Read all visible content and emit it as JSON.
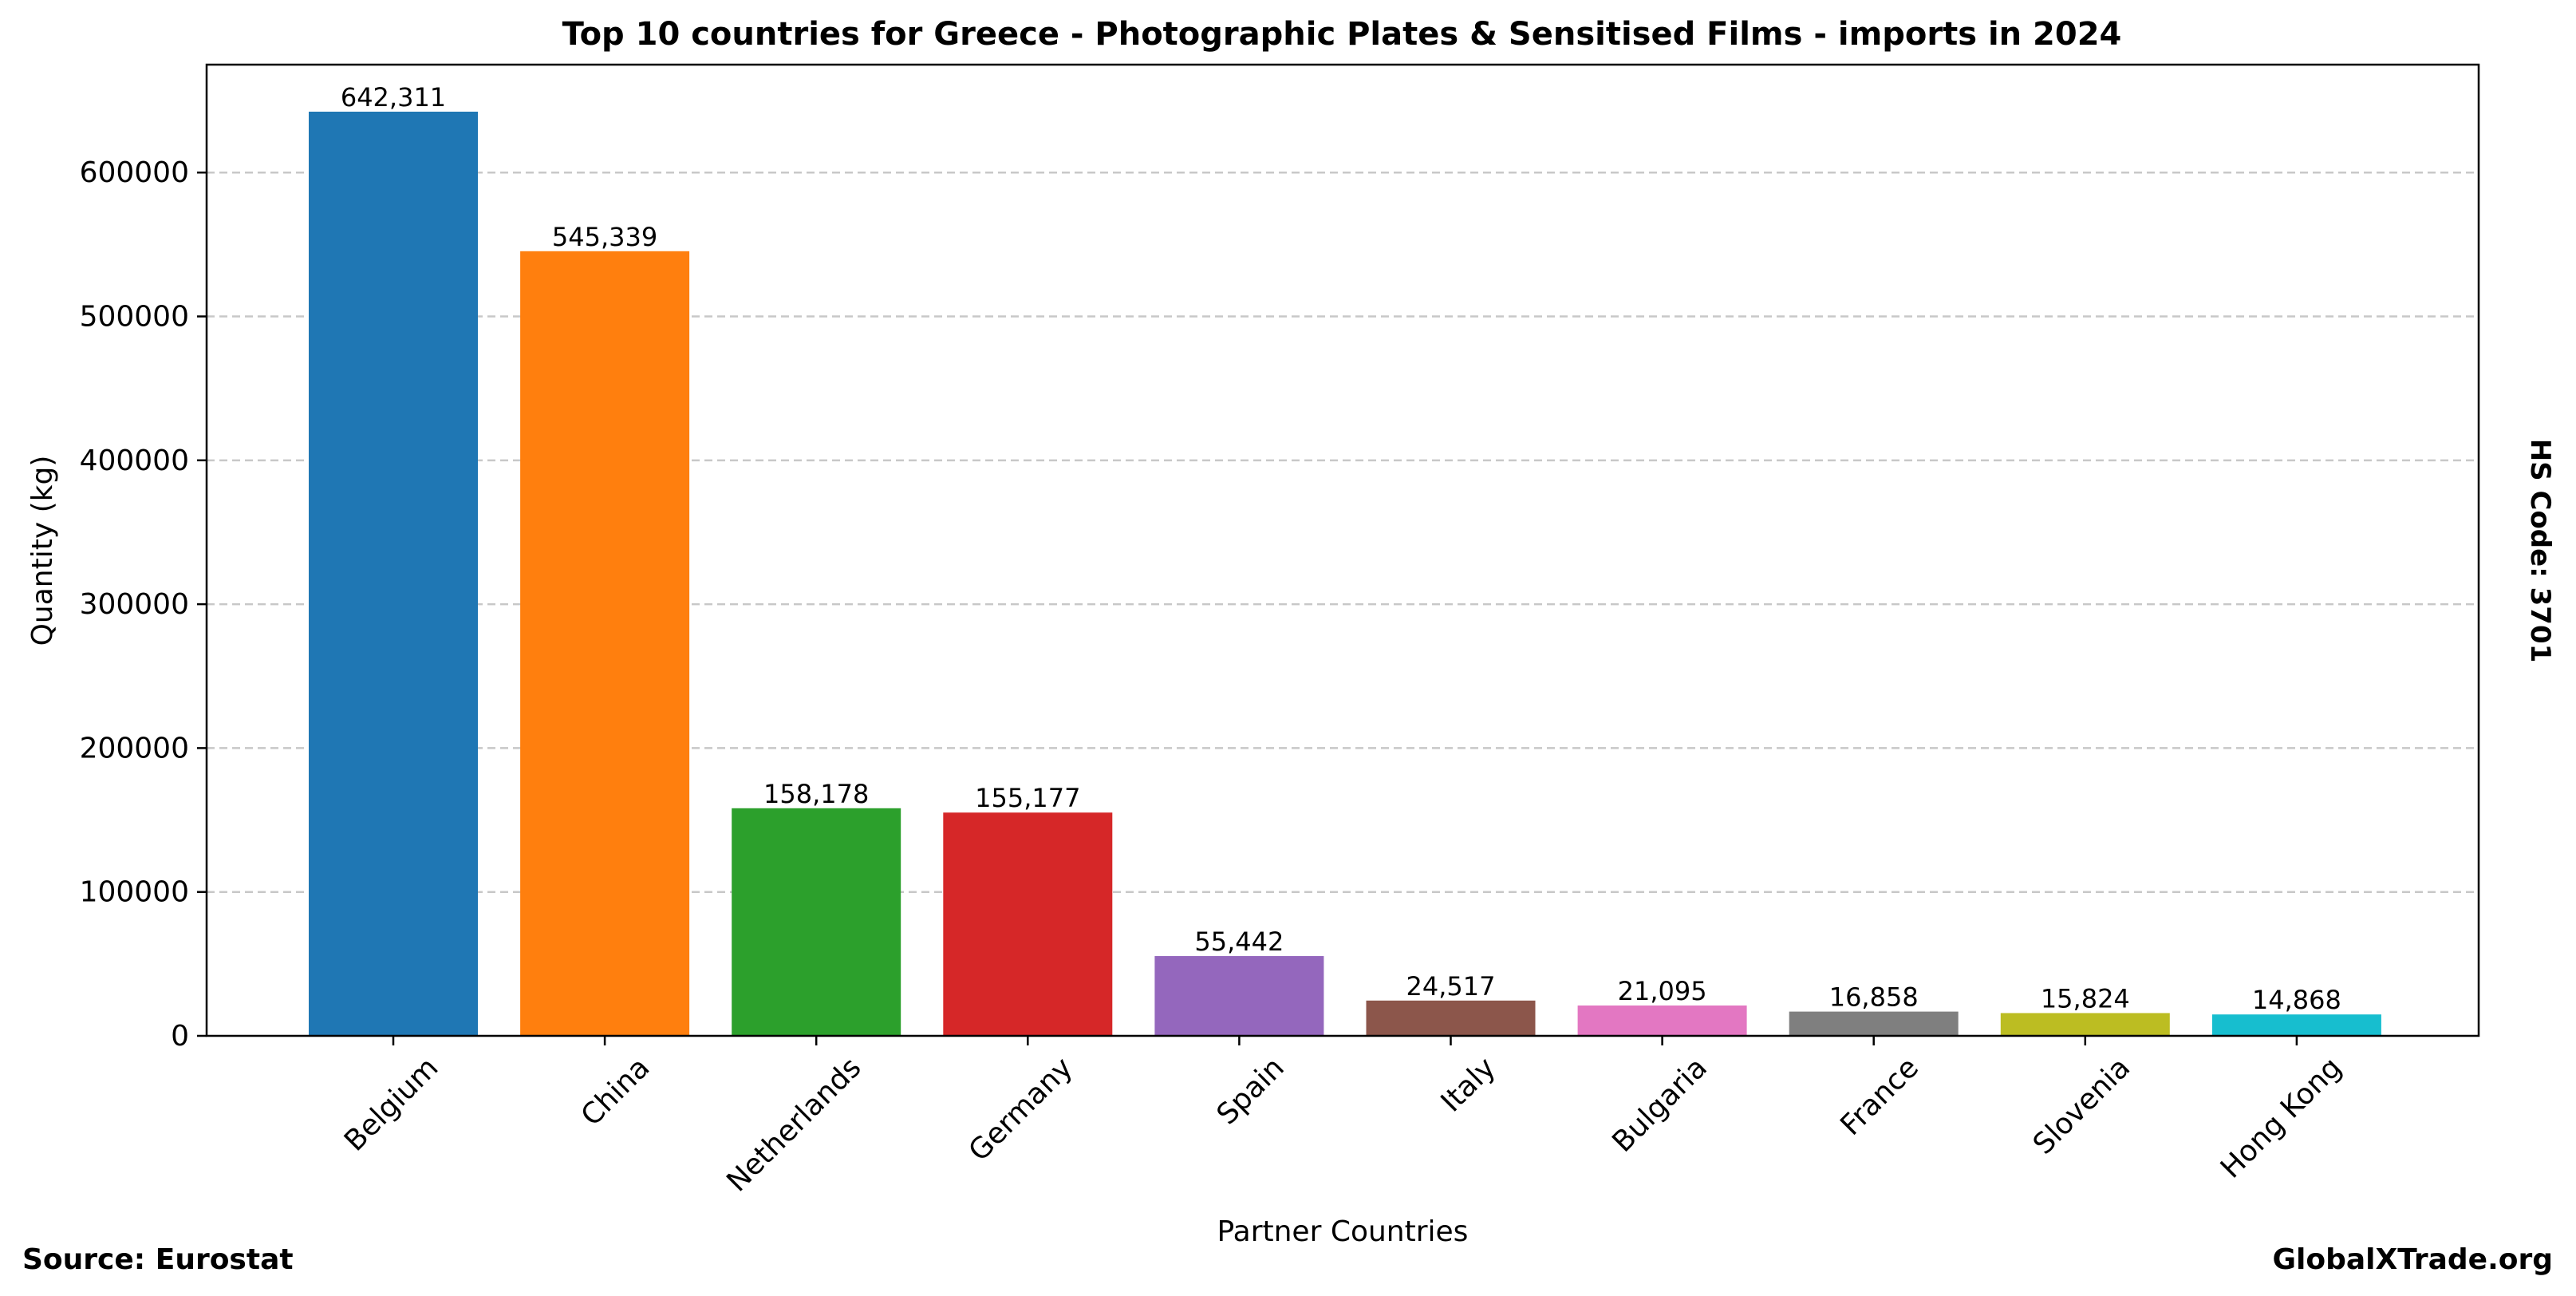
{
  "chart_data": {
    "type": "bar",
    "title": "Top 10 countries for Greece - Photographic Plates & Sensitised Films - imports in 2024",
    "xlabel": "Partner Countries",
    "ylabel": "Quantity (kg)",
    "ylim": [
      0,
      675000
    ],
    "yticks": [
      0,
      100000,
      200000,
      300000,
      400000,
      500000,
      600000
    ],
    "ytick_labels": [
      "0",
      "100000",
      "200000",
      "300000",
      "400000",
      "500000",
      "600000"
    ],
    "grid": true,
    "categories": [
      "Belgium",
      "China",
      "Netherlands",
      "Germany",
      "Spain",
      "Italy",
      "Bulgaria",
      "France",
      "Slovenia",
      "Hong Kong"
    ],
    "values": [
      642311,
      545339,
      158178,
      155177,
      55442,
      24517,
      21095,
      16858,
      15824,
      14868
    ],
    "value_labels": [
      "642,311",
      "545,339",
      "158,178",
      "155,177",
      "55,442",
      "24,517",
      "21,095",
      "16,858",
      "15,824",
      "14,868"
    ],
    "colors": [
      "#1f77b4",
      "#ff7f0e",
      "#2ca02c",
      "#d62728",
      "#9467bd",
      "#8c564b",
      "#e377c2",
      "#7f7f7f",
      "#bcbd22",
      "#17becf"
    ]
  },
  "footer": {
    "source": "Source: Eurostat",
    "site": "GlobalXTrade.org"
  },
  "side_note": "HS Code: 3701"
}
